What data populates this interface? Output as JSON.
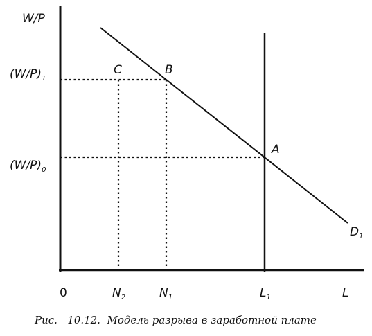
{
  "diagram": {
    "y_axis_label": "W/P",
    "x_axis_label": "L",
    "origin_label": "0",
    "wage_high": {
      "main": "(W/P)",
      "sub": "1"
    },
    "wage_low": {
      "main": "(W/P)",
      "sub": "0"
    },
    "points": {
      "a": "A",
      "b": "B",
      "c": "C"
    },
    "demand_label": {
      "main": "D",
      "sub": "1"
    },
    "ticks": {
      "n2": {
        "main": "N",
        "sub": "2"
      },
      "n1": {
        "main": "N",
        "sub": "1"
      },
      "l1": {
        "main": "L",
        "sub": "1"
      }
    }
  },
  "caption": "Рис.   10.12.  Модель разрыва в заработной плате"
}
